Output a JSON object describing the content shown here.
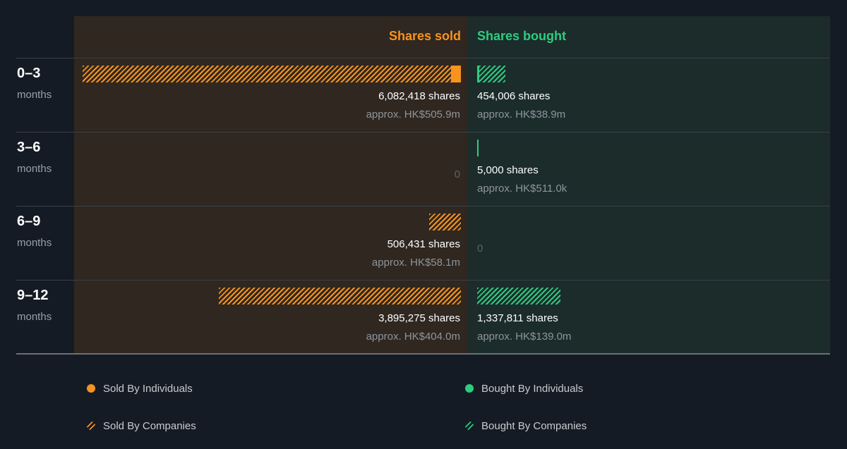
{
  "chart_data": {
    "type": "bar",
    "title": "",
    "headers": {
      "sold": "Shares sold",
      "bought": "Shares bought"
    },
    "currency_prefix": "HK$",
    "colors": {
      "sold": "#f7931e",
      "bought": "#2ecc7f"
    },
    "periods": [
      {
        "label": "0–3",
        "sublabel": "months",
        "sold": {
          "shares": 6082418,
          "shares_text": "6,082,418 shares",
          "value_text": "approx. HK$505.9m",
          "individuals_shares": 158000,
          "companies_shares": 5924418
        },
        "bought": {
          "shares": 454006,
          "shares_text": "454,006 shares",
          "value_text": "approx. HK$38.9m",
          "individuals_shares": 35000,
          "companies_shares": 419006
        }
      },
      {
        "label": "3–6",
        "sublabel": "months",
        "sold": {
          "shares": 0,
          "shares_text": "0",
          "value_text": "",
          "individuals_shares": 0,
          "companies_shares": 0
        },
        "bought": {
          "shares": 5000,
          "shares_text": "5,000 shares",
          "value_text": "approx. HK$511.0k",
          "individuals_shares": 5000,
          "companies_shares": 0
        }
      },
      {
        "label": "6–9",
        "sublabel": "months",
        "sold": {
          "shares": 506431,
          "shares_text": "506,431 shares",
          "value_text": "approx. HK$58.1m",
          "individuals_shares": 0,
          "companies_shares": 506431
        },
        "bought": {
          "shares": 0,
          "shares_text": "0",
          "value_text": "",
          "individuals_shares": 0,
          "companies_shares": 0
        }
      },
      {
        "label": "9–12",
        "sublabel": "months",
        "sold": {
          "shares": 3895275,
          "shares_text": "3,895,275 shares",
          "value_text": "approx. HK$404.0m",
          "individuals_shares": 0,
          "companies_shares": 3895275
        },
        "bought": {
          "shares": 1337811,
          "shares_text": "1,337,811 shares",
          "value_text": "approx. HK$139.0m",
          "individuals_shares": 0,
          "companies_shares": 1337811
        }
      }
    ],
    "legend": {
      "sold_individuals": "Sold By Individuals",
      "sold_companies": "Sold By Companies",
      "bought_individuals": "Bought By Individuals",
      "bought_companies": "Bought By Companies"
    }
  }
}
